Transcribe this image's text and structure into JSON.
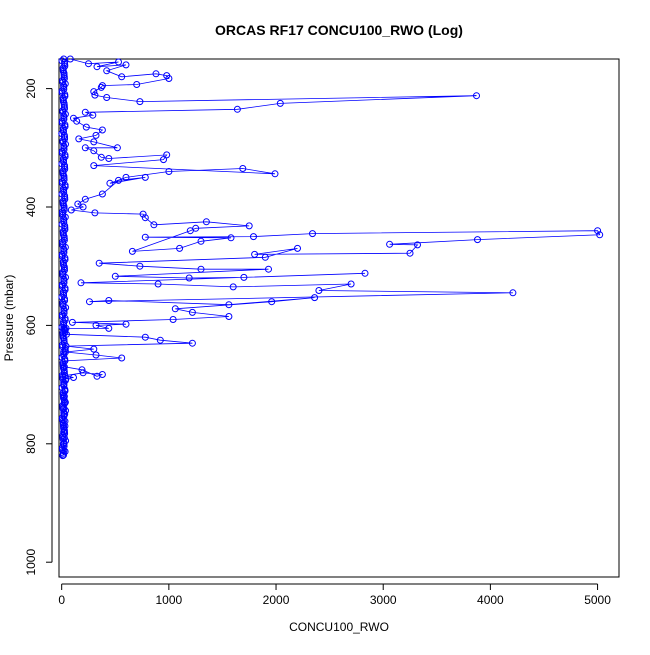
{
  "chart_data": {
    "type": "line",
    "title": "ORCAS RF17 CONCU100_RWO (Log)",
    "xlabel": "CONCU100_RWO",
    "ylabel": "Pressure (mbar)",
    "xlim": [
      -25,
      5200
    ],
    "ylim": [
      1025,
      150
    ],
    "y_reversed": true,
    "x_ticks": [
      0,
      1000,
      2000,
      3000,
      4000,
      5000
    ],
    "y_ticks": [
      200,
      400,
      600,
      800,
      1000
    ],
    "grid": false,
    "legend": "none",
    "series": [
      {
        "marker": "open-circle",
        "color": "#0000ff",
        "notes": "Vertical profile; dense cluster near x=0-60 from ~150 to ~820 mbar with many spikes.",
        "points": [
          [
            10,
            820
          ],
          [
            20,
            812
          ],
          [
            15,
            800
          ],
          [
            25,
            790
          ],
          [
            18,
            780
          ],
          [
            30,
            770
          ],
          [
            20,
            760
          ],
          [
            28,
            750
          ],
          [
            22,
            740
          ],
          [
            35,
            730
          ],
          [
            25,
            720
          ],
          [
            30,
            710
          ],
          [
            20,
            700
          ],
          [
            40,
            690
          ],
          [
            110,
            688
          ],
          [
            30,
            685
          ],
          [
            200,
            680
          ],
          [
            380,
            683
          ],
          [
            330,
            686
          ],
          [
            190,
            675
          ],
          [
            25,
            670
          ],
          [
            30,
            660
          ],
          [
            560,
            655
          ],
          [
            320,
            650
          ],
          [
            35,
            645
          ],
          [
            300,
            640
          ],
          [
            40,
            635
          ],
          [
            1220,
            630
          ],
          [
            920,
            625
          ],
          [
            780,
            620
          ],
          [
            45,
            615
          ],
          [
            30,
            612
          ],
          [
            30,
            608
          ],
          [
            20,
            605
          ],
          [
            40,
            605
          ],
          [
            440,
            605
          ],
          [
            320,
            600
          ],
          [
            600,
            598
          ],
          [
            100,
            595
          ],
          [
            1040,
            590
          ],
          [
            1560,
            585
          ],
          [
            1220,
            578
          ],
          [
            1060,
            572
          ],
          [
            1960,
            560
          ],
          [
            2360,
            553
          ],
          [
            1560,
            565
          ],
          [
            440,
            558
          ],
          [
            260,
            560
          ],
          [
            4210,
            545
          ],
          [
            2400,
            541
          ],
          [
            2700,
            530
          ],
          [
            1600,
            535
          ],
          [
            900,
            530
          ],
          [
            180,
            528
          ],
          [
            2830,
            512
          ],
          [
            1700,
            519
          ],
          [
            1190,
            520
          ],
          [
            500,
            517
          ],
          [
            1930,
            505
          ],
          [
            1300,
            505
          ],
          [
            730,
            500
          ],
          [
            350,
            495
          ],
          [
            1900,
            485
          ],
          [
            2200,
            470
          ],
          [
            1800,
            480
          ],
          [
            3250,
            478
          ],
          [
            3320,
            464
          ],
          [
            3060,
            463
          ],
          [
            3880,
            455
          ],
          [
            5020,
            447
          ],
          [
            5000,
            440
          ],
          [
            2340,
            445
          ],
          [
            1790,
            450
          ],
          [
            780,
            451
          ],
          [
            1580,
            452
          ],
          [
            1300,
            458
          ],
          [
            1100,
            470
          ],
          [
            660,
            475
          ],
          [
            1200,
            440
          ],
          [
            1250,
            436
          ],
          [
            1750,
            432
          ],
          [
            1350,
            425
          ],
          [
            860,
            430
          ],
          [
            780,
            418
          ],
          [
            760,
            412
          ],
          [
            310,
            410
          ],
          [
            90,
            405
          ],
          [
            200,
            400
          ],
          [
            150,
            395
          ],
          [
            220,
            387
          ],
          [
            380,
            378
          ],
          [
            530,
            355
          ],
          [
            780,
            350
          ],
          [
            450,
            360
          ],
          [
            600,
            350
          ],
          [
            1000,
            340
          ],
          [
            1690,
            335
          ],
          [
            1990,
            344
          ],
          [
            300,
            330
          ],
          [
            950,
            320
          ],
          [
            980,
            312
          ],
          [
            440,
            318
          ],
          [
            370,
            316
          ],
          [
            300,
            305
          ],
          [
            220,
            300
          ],
          [
            520,
            300
          ],
          [
            300,
            290
          ],
          [
            160,
            285
          ],
          [
            320,
            279
          ],
          [
            380,
            270
          ],
          [
            230,
            265
          ],
          [
            140,
            255
          ],
          [
            110,
            250
          ],
          [
            290,
            245
          ],
          [
            220,
            240
          ],
          [
            1640,
            235
          ],
          [
            2040,
            225
          ],
          [
            3870,
            212
          ],
          [
            730,
            222
          ],
          [
            420,
            215
          ],
          [
            310,
            211
          ],
          [
            300,
            205
          ],
          [
            370,
            198
          ],
          [
            380,
            195
          ],
          [
            700,
            193
          ],
          [
            1000,
            183
          ],
          [
            980,
            178
          ],
          [
            880,
            175
          ],
          [
            560,
            180
          ],
          [
            420,
            170
          ],
          [
            600,
            160
          ],
          [
            330,
            163
          ],
          [
            530,
            155
          ],
          [
            250,
            158
          ],
          [
            80,
            150
          ]
        ]
      }
    ]
  }
}
